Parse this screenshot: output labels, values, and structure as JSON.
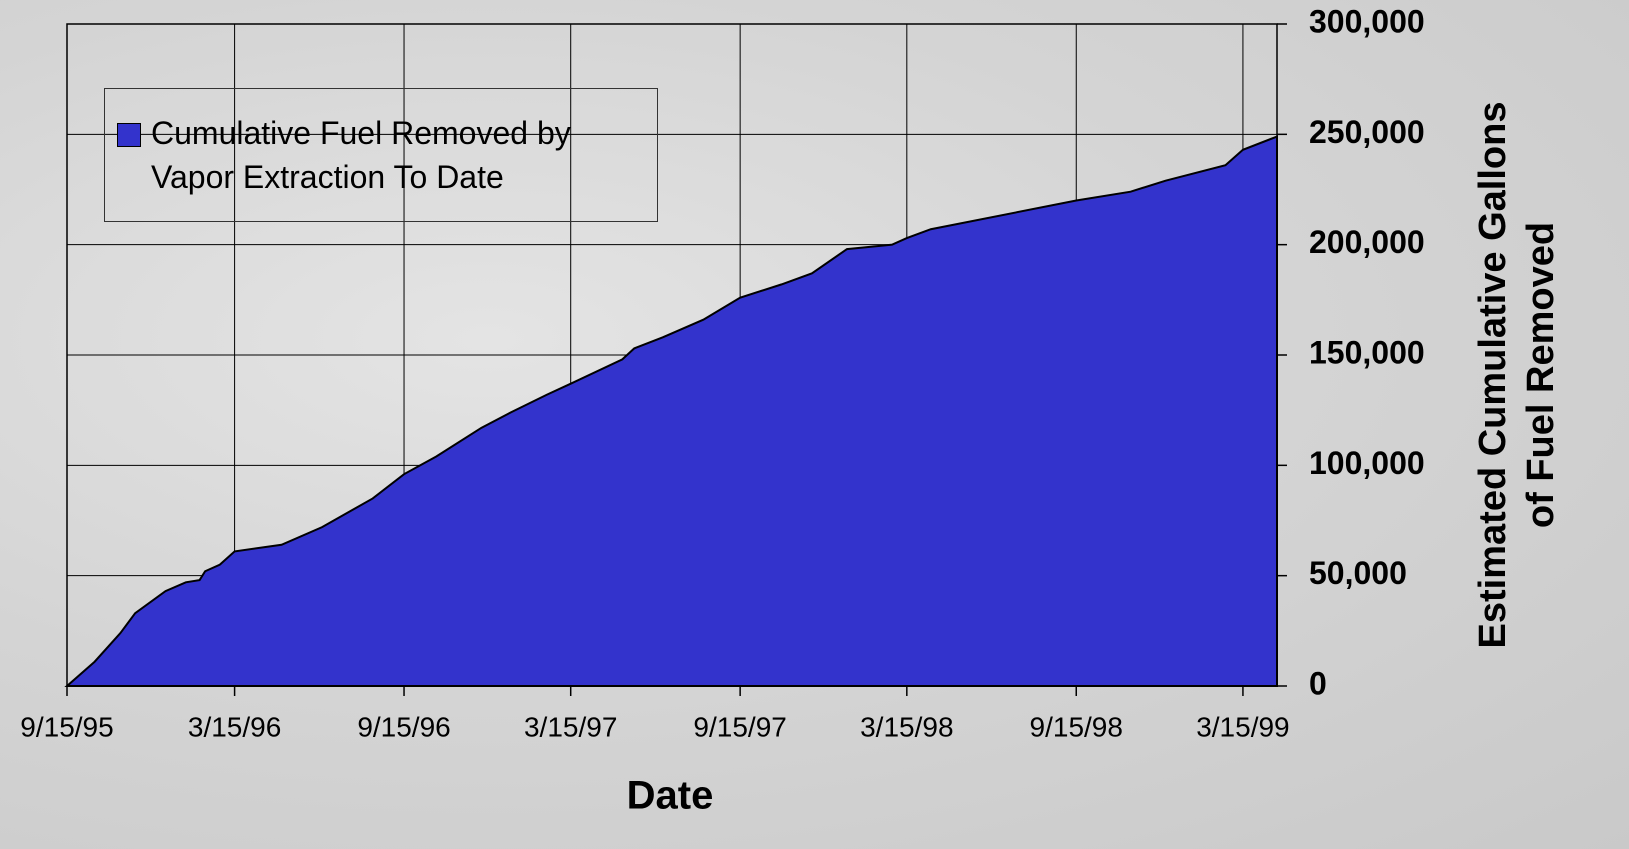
{
  "chart_data": {
    "type": "area",
    "xlabel": "Date",
    "ylabel": [
      "Estimated Cumulative Gallons",
      "of Fuel Removed"
    ],
    "xlim": [
      "1995-09-15",
      "1999-04-21"
    ],
    "xticks": [
      {
        "value": "1995-09-15",
        "label": "9/15/95"
      },
      {
        "value": "1996-03-15",
        "label": "3/15/96"
      },
      {
        "value": "1996-09-15",
        "label": "9/15/96"
      },
      {
        "value": "1997-03-15",
        "label": "3/15/97"
      },
      {
        "value": "1997-09-15",
        "label": "9/15/97"
      },
      {
        "value": "1998-03-15",
        "label": "3/15/98"
      },
      {
        "value": "1998-09-15",
        "label": "9/15/98"
      },
      {
        "value": "1999-03-15",
        "label": "3/15/99"
      }
    ],
    "ylim": [
      0,
      300000
    ],
    "yticks": [
      0,
      {
        "value": 50000,
        "label": "50,000"
      },
      {
        "value": 100000,
        "label": "100,000"
      },
      {
        "value": 150000,
        "label": "150,000"
      },
      {
        "value": 200000,
        "label": "200,000"
      },
      {
        "value": 250000,
        "label": "250,000"
      },
      {
        "value": 300000,
        "label": "300,000"
      }
    ],
    "grid": true,
    "legend": "upper left",
    "series": [
      {
        "name": "Cumulative Fuel Removed by Vapor Extraction To Date",
        "color": "#3333cc",
        "x": [
          "1995-09-15",
          "1995-10-15",
          "1995-11-12",
          "1995-11-28",
          "1995-12-31",
          "1996-01-22",
          "1996-02-06",
          "1996-02-12",
          "1996-02-28",
          "1996-03-15",
          "1996-05-05",
          "1996-06-18",
          "1996-08-12",
          "1996-09-15",
          "1996-10-20",
          "1996-12-08",
          "1997-01-09",
          "1997-02-17",
          "1997-03-15",
          "1997-05-10",
          "1997-05-23",
          "1997-06-23",
          "1997-08-06",
          "1997-09-15",
          "1997-10-30",
          "1997-12-02",
          "1998-01-09",
          "1998-02-27",
          "1998-03-15",
          "1998-04-10",
          "1998-09-15",
          "1998-11-13",
          "1998-12-21",
          "1999-02-24",
          "1999-03-15",
          "1999-04-21"
        ],
        "values": [
          0,
          11000,
          24000,
          33000,
          43000,
          47000,
          48000,
          52000,
          55000,
          61000,
          64000,
          72000,
          85000,
          96000,
          104000,
          117000,
          124000,
          132000,
          137000,
          148000,
          153000,
          158000,
          166000,
          176000,
          182000,
          187000,
          198000,
          200000,
          203000,
          207000,
          220000,
          224000,
          229000,
          236000,
          243000,
          249000
        ]
      }
    ]
  }
}
